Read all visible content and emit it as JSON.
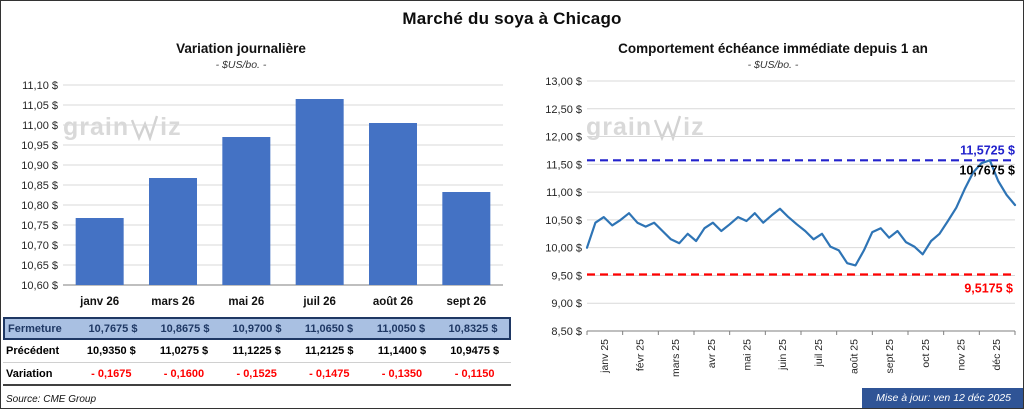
{
  "page": {
    "title": "Marché du soya à Chicago",
    "source": "Source: CME Group",
    "updated": "Mise à jour: ven 12 déc 2025",
    "watermark": {
      "left": "grain",
      "right": "iz"
    }
  },
  "chart_data": [
    {
      "type": "bar",
      "title": "Variation journalière",
      "subtitle": "- $US/bo. -",
      "categories": [
        "janv 26",
        "mars 26",
        "mai 26",
        "juil 26",
        "août 26",
        "sept 26"
      ],
      "values": [
        10.7675,
        10.8675,
        10.97,
        11.065,
        11.005,
        10.8325
      ],
      "ylim": [
        10.6,
        11.1
      ],
      "ytick_step": 0.05,
      "bar_color": "#4472C4",
      "grid": true,
      "ylabel_suffix": " $"
    },
    {
      "type": "line",
      "title": "Comportement échéance immédiate depuis 1 an",
      "subtitle": "- $US/bo. -",
      "x_labels": [
        "janv 25",
        "févr 25",
        "mars 25",
        "avr 25",
        "mai 25",
        "juin 25",
        "juil 25",
        "août 25",
        "sept 25",
        "oct 25",
        "nov 25",
        "déc 25"
      ],
      "values": [
        10.0,
        10.45,
        10.55,
        10.4,
        10.5,
        10.62,
        10.45,
        10.38,
        10.45,
        10.3,
        10.15,
        10.08,
        10.25,
        10.12,
        10.35,
        10.45,
        10.3,
        10.42,
        10.55,
        10.48,
        10.62,
        10.45,
        10.58,
        10.7,
        10.55,
        10.42,
        10.3,
        10.15,
        10.25,
        10.02,
        9.95,
        9.72,
        9.68,
        9.95,
        10.28,
        10.35,
        10.18,
        10.3,
        10.1,
        10.02,
        9.88,
        10.12,
        10.25,
        10.48,
        10.72,
        11.05,
        11.35,
        11.52,
        11.5725,
        11.2,
        10.95,
        10.7675
      ],
      "ylim": [
        8.5,
        13.0
      ],
      "ytick_step": 0.5,
      "line_color": "#2E74B5",
      "grid": true,
      "high_line": {
        "value": 11.5725,
        "label": "11,5725 $",
        "color": "#2222CC"
      },
      "last_point": {
        "value": 10.7675,
        "label": "10,7675 $",
        "color": "#000000"
      },
      "low_line": {
        "value": 9.5175,
        "label": "9,5175 $",
        "color": "#FF0000"
      }
    }
  ],
  "table": {
    "rows": [
      {
        "style": "fermeture",
        "label": "Fermeture",
        "values": [
          "10,7675 $",
          "10,8675 $",
          "10,9700 $",
          "11,0650 $",
          "11,0050 $",
          "10,8325 $"
        ]
      },
      {
        "style": "precedent",
        "label": "Précédent",
        "values": [
          "10,9350 $",
          "11,0275 $",
          "11,1225 $",
          "11,2125 $",
          "11,1400 $",
          "10,9475 $"
        ]
      },
      {
        "style": "variation",
        "label": "Variation",
        "values": [
          "- 0,1675",
          "- 0,1600",
          "- 0,1525",
          "- 0,1475",
          "- 0,1350",
          "- 0,1150"
        ]
      }
    ]
  }
}
